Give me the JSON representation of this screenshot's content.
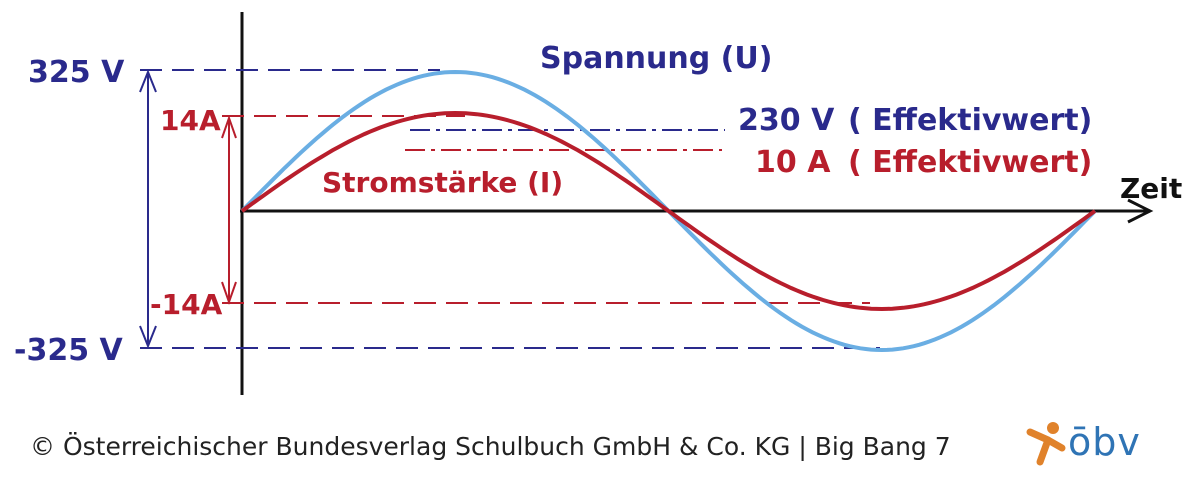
{
  "labels": {
    "v_max": "325 V",
    "v_min": "-325 V",
    "i_max": "14A",
    "i_min": "-14A",
    "time": "Zeit",
    "voltage_curve": "Spannung (U)",
    "current_curve": "Stromstärke (I)",
    "v_eff_value": "230 V",
    "v_eff_note": "( Effektivwert)",
    "i_eff_value": "10 A",
    "i_eff_note": "( Effektivwert)"
  },
  "footer": {
    "copyright": "© Österreichischer Bundesverlag Schulbuch GmbH & Co. KG |  Big Bang 7",
    "logo": "ōbv"
  },
  "colors": {
    "voltage_blue": "#2a2a8c",
    "voltage_curve": "#6aaee3",
    "current_red": "#b81e2c",
    "axis": "#111111",
    "logo_orange": "#e0822b",
    "logo_blue": "#2f74b5"
  },
  "curves": {
    "voltage_amplitude_V": 325,
    "current_amplitude_A": 14,
    "voltage_effective_V": 230,
    "current_effective_A": 10,
    "periods_shown": 1
  }
}
